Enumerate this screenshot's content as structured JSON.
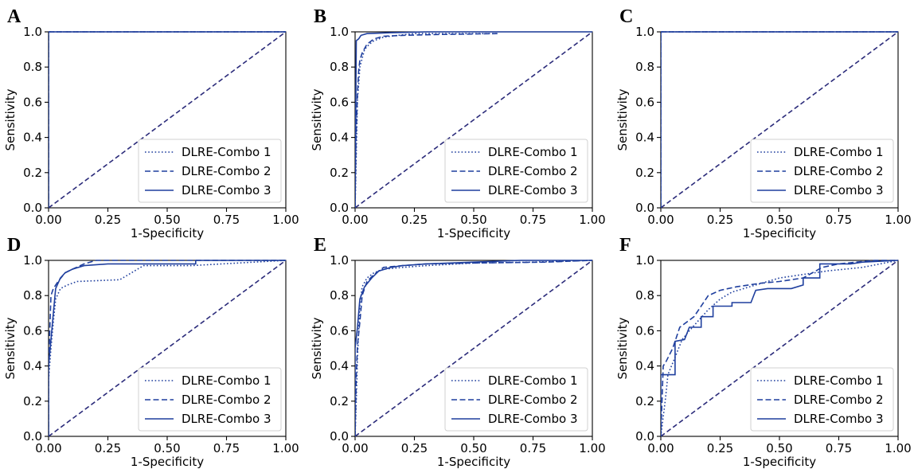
{
  "colors": {
    "curve": "#1f3f9e",
    "diagonal": "#2b2b7a"
  },
  "chart_data": [
    {
      "panel": "A",
      "type": "line",
      "xlabel": "1-Specificity",
      "ylabel": "Sensitivity",
      "xlim": [
        0,
        1
      ],
      "ylim": [
        0,
        1
      ],
      "xticks": [
        "0.00",
        "0.25",
        "0.50",
        "0.75",
        "1.00"
      ],
      "yticks": [
        "0.0",
        "0.2",
        "0.4",
        "0.6",
        "0.8",
        "1.0"
      ],
      "legend": "lower-right",
      "grid": false,
      "diagonal": [
        [
          0,
          0
        ],
        [
          1,
          1
        ]
      ],
      "series": [
        {
          "name": "DLRE-Combo 1",
          "style": "dotted",
          "points": [
            [
              0,
              0
            ],
            [
              0,
              1
            ],
            [
              1,
              1
            ]
          ]
        },
        {
          "name": "DLRE-Combo 2",
          "style": "dashed",
          "points": [
            [
              0,
              0
            ],
            [
              0,
              1
            ],
            [
              1,
              1
            ]
          ]
        },
        {
          "name": "DLRE-Combo 3",
          "style": "solid",
          "points": [
            [
              0,
              0
            ],
            [
              0,
              1
            ],
            [
              1,
              1
            ]
          ]
        }
      ]
    },
    {
      "panel": "B",
      "type": "line",
      "xlabel": "1-Specificity",
      "ylabel": "Sensitivity",
      "xlim": [
        0,
        1
      ],
      "ylim": [
        0,
        1
      ],
      "xticks": [
        "0.00",
        "0.25",
        "0.50",
        "0.75",
        "1.00"
      ],
      "yticks": [
        "0.0",
        "0.2",
        "0.4",
        "0.6",
        "0.8",
        "1.0"
      ],
      "legend": "lower-right",
      "grid": false,
      "diagonal": [
        [
          0,
          0
        ],
        [
          1,
          1
        ]
      ],
      "series": [
        {
          "name": "DLRE-Combo 1",
          "style": "dotted",
          "points": [
            [
              0,
              0
            ],
            [
              0.005,
              0.3
            ],
            [
              0.01,
              0.62
            ],
            [
              0.015,
              0.7
            ],
            [
              0.02,
              0.8
            ],
            [
              0.03,
              0.85
            ],
            [
              0.04,
              0.9
            ],
            [
              0.06,
              0.93
            ],
            [
              0.08,
              0.95
            ],
            [
              0.12,
              0.97
            ],
            [
              0.18,
              0.98
            ],
            [
              0.25,
              0.99
            ],
            [
              0.6,
              0.99
            ]
          ]
        },
        {
          "name": "DLRE-Combo 2",
          "style": "dashed",
          "points": [
            [
              0,
              0
            ],
            [
              0.004,
              0.4
            ],
            [
              0.01,
              0.65
            ],
            [
              0.015,
              0.78
            ],
            [
              0.02,
              0.84
            ],
            [
              0.03,
              0.88
            ],
            [
              0.05,
              0.93
            ],
            [
              0.08,
              0.96
            ],
            [
              0.12,
              0.975
            ],
            [
              0.2,
              0.98
            ],
            [
              0.35,
              0.985
            ],
            [
              0.6,
              0.99
            ]
          ]
        },
        {
          "name": "DLRE-Combo 3",
          "style": "solid",
          "points": [
            [
              0,
              0
            ],
            [
              0.003,
              0.6
            ],
            [
              0.005,
              0.95
            ],
            [
              0.015,
              0.96
            ],
            [
              0.025,
              0.98
            ],
            [
              0.05,
              0.99
            ],
            [
              0.15,
              0.995
            ],
            [
              0.3,
              1.0
            ],
            [
              1,
              1.0
            ]
          ]
        }
      ]
    },
    {
      "panel": "C",
      "type": "line",
      "xlabel": "1-Specificity",
      "ylabel": "Sensitivity",
      "xlim": [
        0,
        1
      ],
      "ylim": [
        0,
        1
      ],
      "xticks": [
        "0.00",
        "0.25",
        "0.50",
        "0.75",
        "1.00"
      ],
      "yticks": [
        "0.0",
        "0.2",
        "0.4",
        "0.6",
        "0.8",
        "1.0"
      ],
      "legend": "lower-right",
      "grid": false,
      "diagonal": [
        [
          0,
          0
        ],
        [
          1,
          1
        ]
      ],
      "series": [
        {
          "name": "DLRE-Combo 1",
          "style": "dotted",
          "points": [
            [
              0,
              0
            ],
            [
              0,
              1
            ],
            [
              1,
              1
            ]
          ]
        },
        {
          "name": "DLRE-Combo 2",
          "style": "dashed",
          "points": [
            [
              0,
              0
            ],
            [
              0,
              1
            ],
            [
              1,
              1
            ]
          ]
        },
        {
          "name": "DLRE-Combo 3",
          "style": "solid",
          "points": [
            [
              0,
              0
            ],
            [
              0,
              1
            ],
            [
              1,
              1
            ]
          ]
        }
      ]
    },
    {
      "panel": "D",
      "type": "line",
      "xlabel": "1-Specificity",
      "ylabel": "Sensitivity",
      "xlim": [
        0,
        1
      ],
      "ylim": [
        0,
        1
      ],
      "xticks": [
        "0.00",
        "0.25",
        "0.50",
        "0.75",
        "1.00"
      ],
      "yticks": [
        "0.0",
        "0.2",
        "0.4",
        "0.6",
        "0.8",
        "1.0"
      ],
      "legend": "lower-right",
      "grid": false,
      "diagonal": [
        [
          0,
          0
        ],
        [
          1,
          1
        ]
      ],
      "series": [
        {
          "name": "DLRE-Combo 1",
          "style": "dotted",
          "points": [
            [
              0,
              0
            ],
            [
              0,
              0.32
            ],
            [
              0.01,
              0.5
            ],
            [
              0.02,
              0.65
            ],
            [
              0.03,
              0.78
            ],
            [
              0.05,
              0.84
            ],
            [
              0.08,
              0.86
            ],
            [
              0.12,
              0.88
            ],
            [
              0.3,
              0.89
            ],
            [
              0.35,
              0.93
            ],
            [
              0.4,
              0.97
            ],
            [
              0.6,
              0.97
            ],
            [
              1,
              1
            ]
          ]
        },
        {
          "name": "DLRE-Combo 2",
          "style": "dashed",
          "points": [
            [
              0,
              0
            ],
            [
              0,
              0.38
            ],
            [
              0.005,
              0.6
            ],
            [
              0.01,
              0.8
            ],
            [
              0.02,
              0.84
            ],
            [
              0.04,
              0.88
            ],
            [
              0.07,
              0.93
            ],
            [
              0.1,
              0.95
            ],
            [
              0.15,
              0.98
            ],
            [
              0.2,
              1.0
            ],
            [
              1,
              1.0
            ]
          ]
        },
        {
          "name": "DLRE-Combo 3",
          "style": "solid",
          "points": [
            [
              0,
              0
            ],
            [
              0,
              0.4
            ],
            [
              0.01,
              0.55
            ],
            [
              0.02,
              0.7
            ],
            [
              0.03,
              0.84
            ],
            [
              0.05,
              0.9
            ],
            [
              0.07,
              0.93
            ],
            [
              0.1,
              0.95
            ],
            [
              0.15,
              0.97
            ],
            [
              0.25,
              0.98
            ],
            [
              0.62,
              0.98
            ],
            [
              0.62,
              1.0
            ],
            [
              1,
              1.0
            ]
          ]
        }
      ]
    },
    {
      "panel": "E",
      "type": "line",
      "xlabel": "1-Specificity",
      "ylabel": "Sensitivity",
      "xlim": [
        0,
        1
      ],
      "ylim": [
        0,
        1
      ],
      "xticks": [
        "0.00",
        "0.25",
        "0.50",
        "0.75",
        "1.00"
      ],
      "yticks": [
        "0.0",
        "0.2",
        "0.4",
        "0.6",
        "0.8",
        "1.0"
      ],
      "legend": "lower-right",
      "grid": false,
      "diagonal": [
        [
          0,
          0
        ],
        [
          1,
          1
        ]
      ],
      "series": [
        {
          "name": "DLRE-Combo 1",
          "style": "dotted",
          "points": [
            [
              0,
              0
            ],
            [
              0.005,
              0.2
            ],
            [
              0.01,
              0.45
            ],
            [
              0.015,
              0.6
            ],
            [
              0.02,
              0.75
            ],
            [
              0.03,
              0.85
            ],
            [
              0.05,
              0.9
            ],
            [
              0.08,
              0.93
            ],
            [
              0.12,
              0.95
            ],
            [
              0.2,
              0.96
            ],
            [
              0.3,
              0.97
            ],
            [
              0.5,
              0.985
            ],
            [
              0.75,
              0.99
            ],
            [
              1,
              1
            ]
          ]
        },
        {
          "name": "DLRE-Combo 2",
          "style": "dashed",
          "points": [
            [
              0,
              0
            ],
            [
              0.005,
              0.35
            ],
            [
              0.01,
              0.52
            ],
            [
              0.02,
              0.65
            ],
            [
              0.03,
              0.8
            ],
            [
              0.05,
              0.88
            ],
            [
              0.08,
              0.92
            ],
            [
              0.12,
              0.96
            ],
            [
              0.2,
              0.97
            ],
            [
              0.3,
              0.98
            ],
            [
              0.5,
              0.985
            ],
            [
              0.8,
              0.99
            ],
            [
              1,
              1
            ]
          ]
        },
        {
          "name": "DLRE-Combo 3",
          "style": "solid",
          "points": [
            [
              0,
              0
            ],
            [
              0,
              0.5
            ],
            [
              0.01,
              0.62
            ],
            [
              0.02,
              0.78
            ],
            [
              0.04,
              0.85
            ],
            [
              0.07,
              0.9
            ],
            [
              0.1,
              0.94
            ],
            [
              0.15,
              0.96
            ],
            [
              0.2,
              0.97
            ],
            [
              0.3,
              0.98
            ],
            [
              0.5,
              0.99
            ],
            [
              0.7,
              1.0
            ],
            [
              1,
              1.0
            ]
          ]
        }
      ]
    },
    {
      "panel": "F",
      "type": "line",
      "xlabel": "1-Specificity",
      "ylabel": "Sensitivity",
      "xlim": [
        0,
        1
      ],
      "ylim": [
        0,
        1
      ],
      "xticks": [
        "0.00",
        "0.25",
        "0.50",
        "0.75",
        "1.00"
      ],
      "yticks": [
        "0.0",
        "0.2",
        "0.4",
        "0.6",
        "0.8",
        "1.0"
      ],
      "legend": "lower-right",
      "grid": false,
      "diagonal": [
        [
          0,
          0
        ],
        [
          1,
          1
        ]
      ],
      "series": [
        {
          "name": "DLRE-Combo 1",
          "style": "dotted",
          "points": [
            [
              0,
              0
            ],
            [
              0.02,
              0.22
            ],
            [
              0.03,
              0.35
            ],
            [
              0.06,
              0.45
            ],
            [
              0.09,
              0.55
            ],
            [
              0.12,
              0.6
            ],
            [
              0.16,
              0.66
            ],
            [
              0.2,
              0.72
            ],
            [
              0.25,
              0.78
            ],
            [
              0.3,
              0.82
            ],
            [
              0.4,
              0.86
            ],
            [
              0.5,
              0.9
            ],
            [
              0.6,
              0.92
            ],
            [
              0.7,
              0.94
            ],
            [
              0.85,
              0.96
            ],
            [
              1,
              1
            ]
          ]
        },
        {
          "name": "DLRE-Combo 2",
          "style": "dashed",
          "points": [
            [
              0,
              0
            ],
            [
              0.01,
              0.4
            ],
            [
              0.02,
              0.42
            ],
            [
              0.05,
              0.5
            ],
            [
              0.08,
              0.62
            ],
            [
              0.14,
              0.68
            ],
            [
              0.2,
              0.8
            ],
            [
              0.25,
              0.83
            ],
            [
              0.32,
              0.85
            ],
            [
              0.42,
              0.87
            ],
            [
              0.5,
              0.88
            ],
            [
              0.6,
              0.9
            ],
            [
              0.68,
              0.96
            ],
            [
              0.75,
              0.98
            ],
            [
              0.9,
              1.0
            ],
            [
              1,
              1
            ]
          ]
        },
        {
          "name": "DLRE-Combo 3",
          "style": "solid",
          "points": [
            [
              0,
              0
            ],
            [
              0,
              0.35
            ],
            [
              0.06,
              0.35
            ],
            [
              0.06,
              0.54
            ],
            [
              0.1,
              0.55
            ],
            [
              0.12,
              0.62
            ],
            [
              0.17,
              0.62
            ],
            [
              0.17,
              0.68
            ],
            [
              0.22,
              0.68
            ],
            [
              0.22,
              0.74
            ],
            [
              0.3,
              0.74
            ],
            [
              0.3,
              0.76
            ],
            [
              0.38,
              0.76
            ],
            [
              0.4,
              0.83
            ],
            [
              0.45,
              0.84
            ],
            [
              0.55,
              0.84
            ],
            [
              0.6,
              0.86
            ],
            [
              0.6,
              0.9
            ],
            [
              0.67,
              0.9
            ],
            [
              0.67,
              0.98
            ],
            [
              0.8,
              0.98
            ],
            [
              0.85,
              0.99
            ],
            [
              1,
              1
            ]
          ]
        }
      ]
    }
  ]
}
